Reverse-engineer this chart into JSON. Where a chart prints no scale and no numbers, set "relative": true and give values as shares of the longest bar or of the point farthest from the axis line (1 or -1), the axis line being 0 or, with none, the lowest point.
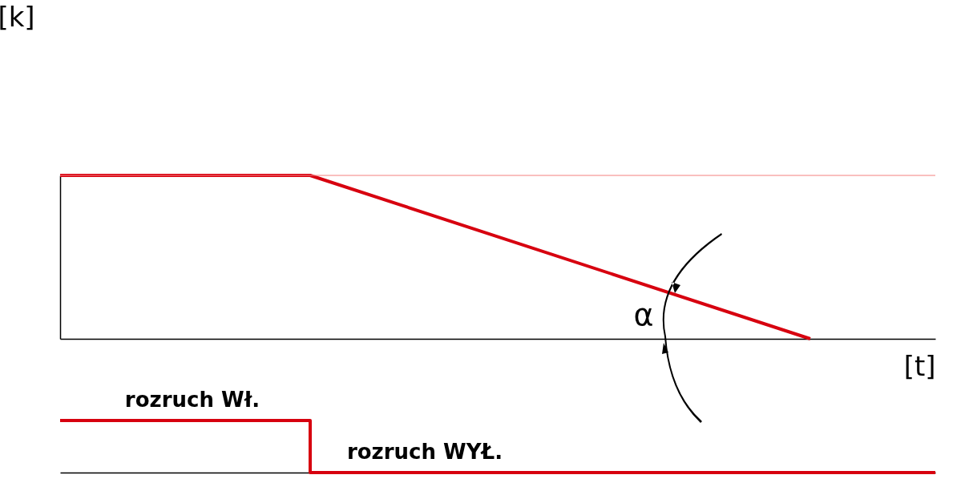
{
  "chart_data": [
    {
      "type": "line",
      "relative": true,
      "categories": [
        null,
        null,
        null,
        null,
        null,
        null,
        null,
        null
      ],
      "series": [
        {
          "color": "#d7000f",
          "values": [
            1,
            null,
            1,
            null,
            null,
            null,
            0,
            null
          ]
        }
      ],
      "ylabel": "[k]",
      "xlabel": "[t]",
      "ref_lines": [
        {
          "axis": "y",
          "value": 1,
          "color": "#f4807f"
        }
      ],
      "annotations": [
        "α"
      ],
      "tick_labels": false
    },
    {
      "type": "step",
      "relative": true,
      "categories": [
        null,
        null,
        null,
        null,
        null,
        null,
        null,
        null
      ],
      "series": [
        {
          "color": "#d7000f",
          "values": [
            1,
            1,
            0,
            0,
            0,
            0,
            0,
            0
          ]
        }
      ],
      "annotations": [
        "rozruch Wł.",
        "rozruch WYŁ."
      ],
      "tick_labels": false
    }
  ]
}
